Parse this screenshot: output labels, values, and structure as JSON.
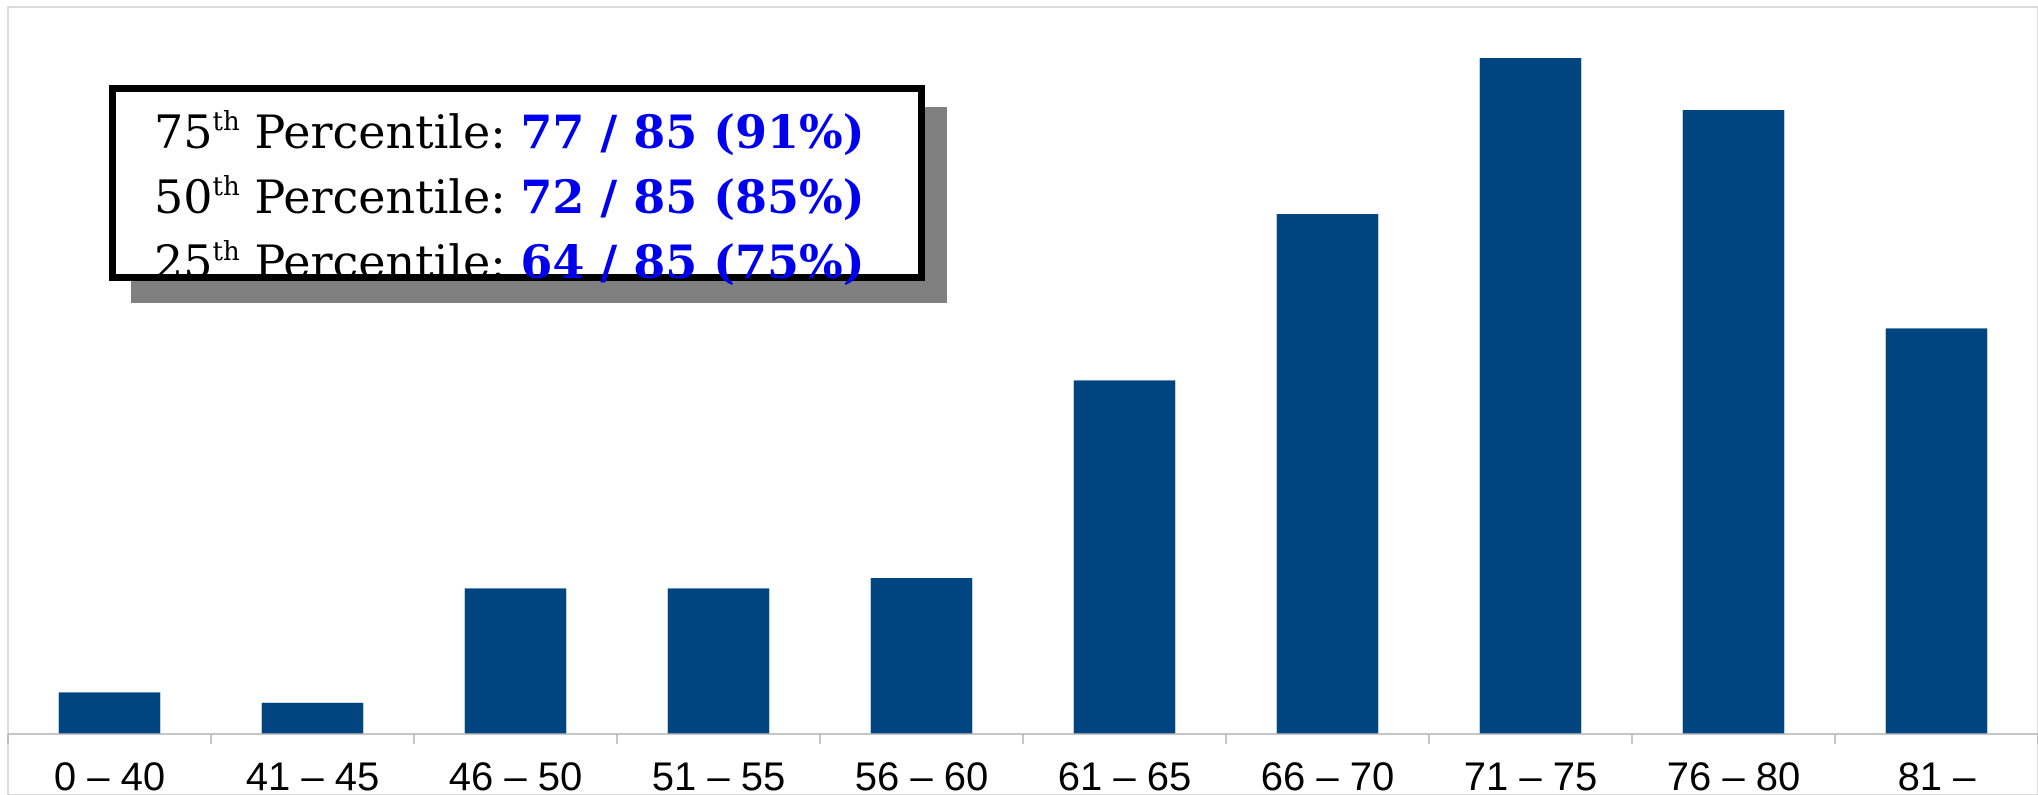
{
  "chart_data": {
    "type": "bar",
    "categories": [
      "0 – 40",
      "41 – 45",
      "46 – 50",
      "51 – 55",
      "56 – 60",
      "61 – 65",
      "66 – 70",
      "71 – 75",
      "76 – 80",
      "81 –"
    ],
    "values": [
      4,
      3,
      14,
      14,
      15,
      34,
      50,
      65,
      60,
      39
    ],
    "ylim": [
      0,
      70
    ],
    "grid": false,
    "bar_color": "#00457f",
    "annotation_value_color": "#0000ee",
    "annotations": [
      {
        "num": "75",
        "sup": "th",
        "text": " Percentile: ",
        "value": "77 / 85 (91%)"
      },
      {
        "num": "50",
        "sup": "th",
        "text": " Percentile: ",
        "value": "72 / 85 (85%)"
      },
      {
        "num": "25",
        "sup": "th",
        "text": " Percentile: ",
        "value": "64 / 85 (75%)"
      }
    ]
  }
}
